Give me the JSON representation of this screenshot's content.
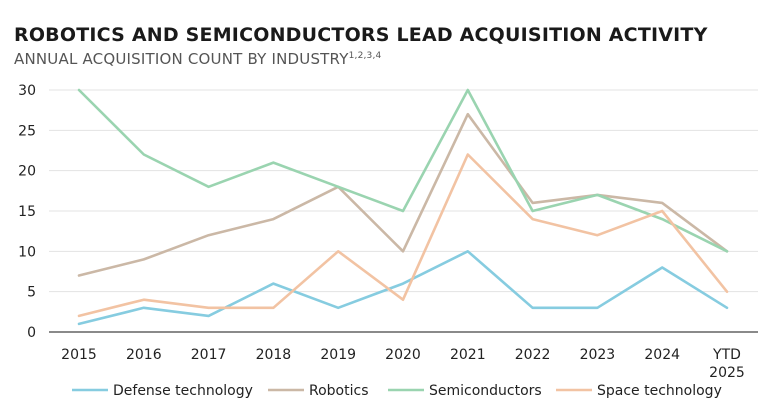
{
  "chart_data": {
    "type": "line",
    "title": "ROBOTICS AND SEMICONDUCTORS LEAD ACQUISITION ACTIVITY",
    "subtitle": "ANNUAL ACQUISITION COUNT BY INDUSTRY",
    "subtitle_sup": "1,2,3,4",
    "categories": [
      "2015",
      "2016",
      "2017",
      "2018",
      "2019",
      "2020",
      "2021",
      "2022",
      "2023",
      "2024",
      "YTD 2025"
    ],
    "ylim": [
      0,
      30
    ],
    "yticks": [
      0,
      5,
      10,
      15,
      20,
      25,
      30
    ],
    "grid": true,
    "legend_position": "bottom",
    "series": [
      {
        "name": "Defense technology",
        "color": "#86CCE0",
        "values": [
          1,
          3,
          2,
          6,
          3,
          6,
          10,
          3,
          3,
          8,
          3
        ]
      },
      {
        "name": "Robotics",
        "color": "#CBB8A6",
        "values": [
          7,
          9,
          12,
          14,
          18,
          10,
          27,
          16,
          17,
          16,
          10
        ]
      },
      {
        "name": "Semiconductors",
        "color": "#9AD4B0",
        "values": [
          30,
          22,
          18,
          21,
          18,
          15,
          30,
          15,
          17,
          14,
          10
        ]
      },
      {
        "name": "Space technology",
        "color": "#F2C3A3",
        "values": [
          2,
          4,
          3,
          3,
          10,
          4,
          22,
          14,
          12,
          15,
          5
        ]
      }
    ]
  }
}
